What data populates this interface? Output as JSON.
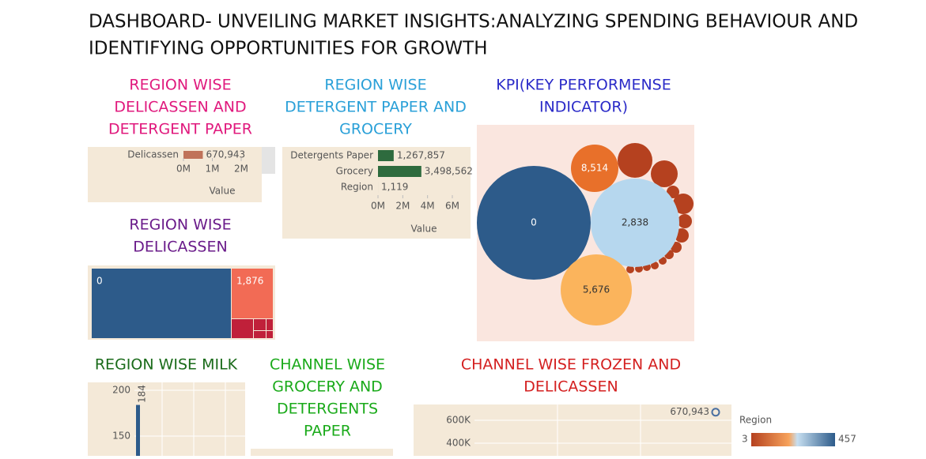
{
  "title": [
    "DASHBOARD- UNVEILING MARKET INSIGHTS:ANALYZING SPENDING BEHAVIOUR AND",
    "IDENTIFYING OPPORTUNITIES FOR GROWTH"
  ],
  "chart_data": [
    {
      "type": "hbar",
      "title": [
        "REGION WISE",
        "DELICASSEN AND",
        "DETERGENT PAPER"
      ],
      "color": "#c0735a",
      "categories": [
        "Delicassen"
      ],
      "values": [
        670943
      ],
      "value_labels": [
        "670,943"
      ],
      "xlim": [
        0,
        2000000
      ],
      "xticks": [
        {
          "value": 0,
          "label": "0M"
        },
        {
          "value": 1000000,
          "label": "1M"
        },
        {
          "value": 2000000,
          "label": "2M"
        }
      ],
      "xlabel": "Value"
    },
    {
      "type": "hbar",
      "title": [
        "REGION WISE",
        "DETERGENT PAPER AND",
        "GROCERY"
      ],
      "color": "#2e6b3e",
      "categories": [
        "Detergents Paper",
        "Grocery",
        "Region"
      ],
      "values": [
        1267857,
        3498562,
        1119
      ],
      "value_labels": [
        "1,267,857",
        "3,498,562",
        "1,119"
      ],
      "xlim": [
        0,
        6000000
      ],
      "xticks": [
        {
          "value": 0,
          "label": "0M"
        },
        {
          "value": 2000000,
          "label": "2M"
        },
        {
          "value": 4000000,
          "label": "4M"
        },
        {
          "value": 6000000,
          "label": "6M"
        }
      ],
      "xlabel": "Value"
    },
    {
      "type": "bubble",
      "title": [
        "KPI(KEY PERFORMENSE",
        "INDICATOR)"
      ],
      "values": [
        0,
        8514,
        2838,
        5676
      ],
      "value_labels": [
        "0",
        "8,514",
        "2,838",
        "5,676"
      ],
      "colors": [
        "#2d5b8a",
        "#e8702a",
        "#b6d7ee",
        "#fbb45c"
      ]
    },
    {
      "type": "treemap",
      "title": [
        "REGION WISE",
        "DELICASSEN"
      ],
      "values": [
        0,
        1876
      ],
      "value_labels": [
        "0",
        "1,876"
      ],
      "colors": [
        "#2d5b8a",
        "#f26b55"
      ]
    },
    {
      "type": "vbar",
      "title": [
        "REGION WISE MILK"
      ],
      "values": [
        184
      ],
      "color": "#2d5b8a",
      "ylim": [
        150,
        200
      ],
      "yticks": [
        150,
        200
      ]
    },
    {
      "type": "panel",
      "title": [
        "CHANNEL  WISE",
        "GROCERY AND",
        "DETERGENTS",
        "PAPER"
      ]
    },
    {
      "type": "scatter",
      "title": [
        "CHANNEL WISE FROZEN AND",
        "DELICASSEN"
      ],
      "values": [
        670943
      ],
      "value_labels": [
        "670,943"
      ],
      "ylim": [
        400000,
        600000
      ],
      "yticks": [
        {
          "value": 400000,
          "label": "400K"
        },
        {
          "value": 600000,
          "label": "600K"
        }
      ],
      "legend_title": "Region",
      "legend_range": [
        3,
        457
      ]
    }
  ]
}
